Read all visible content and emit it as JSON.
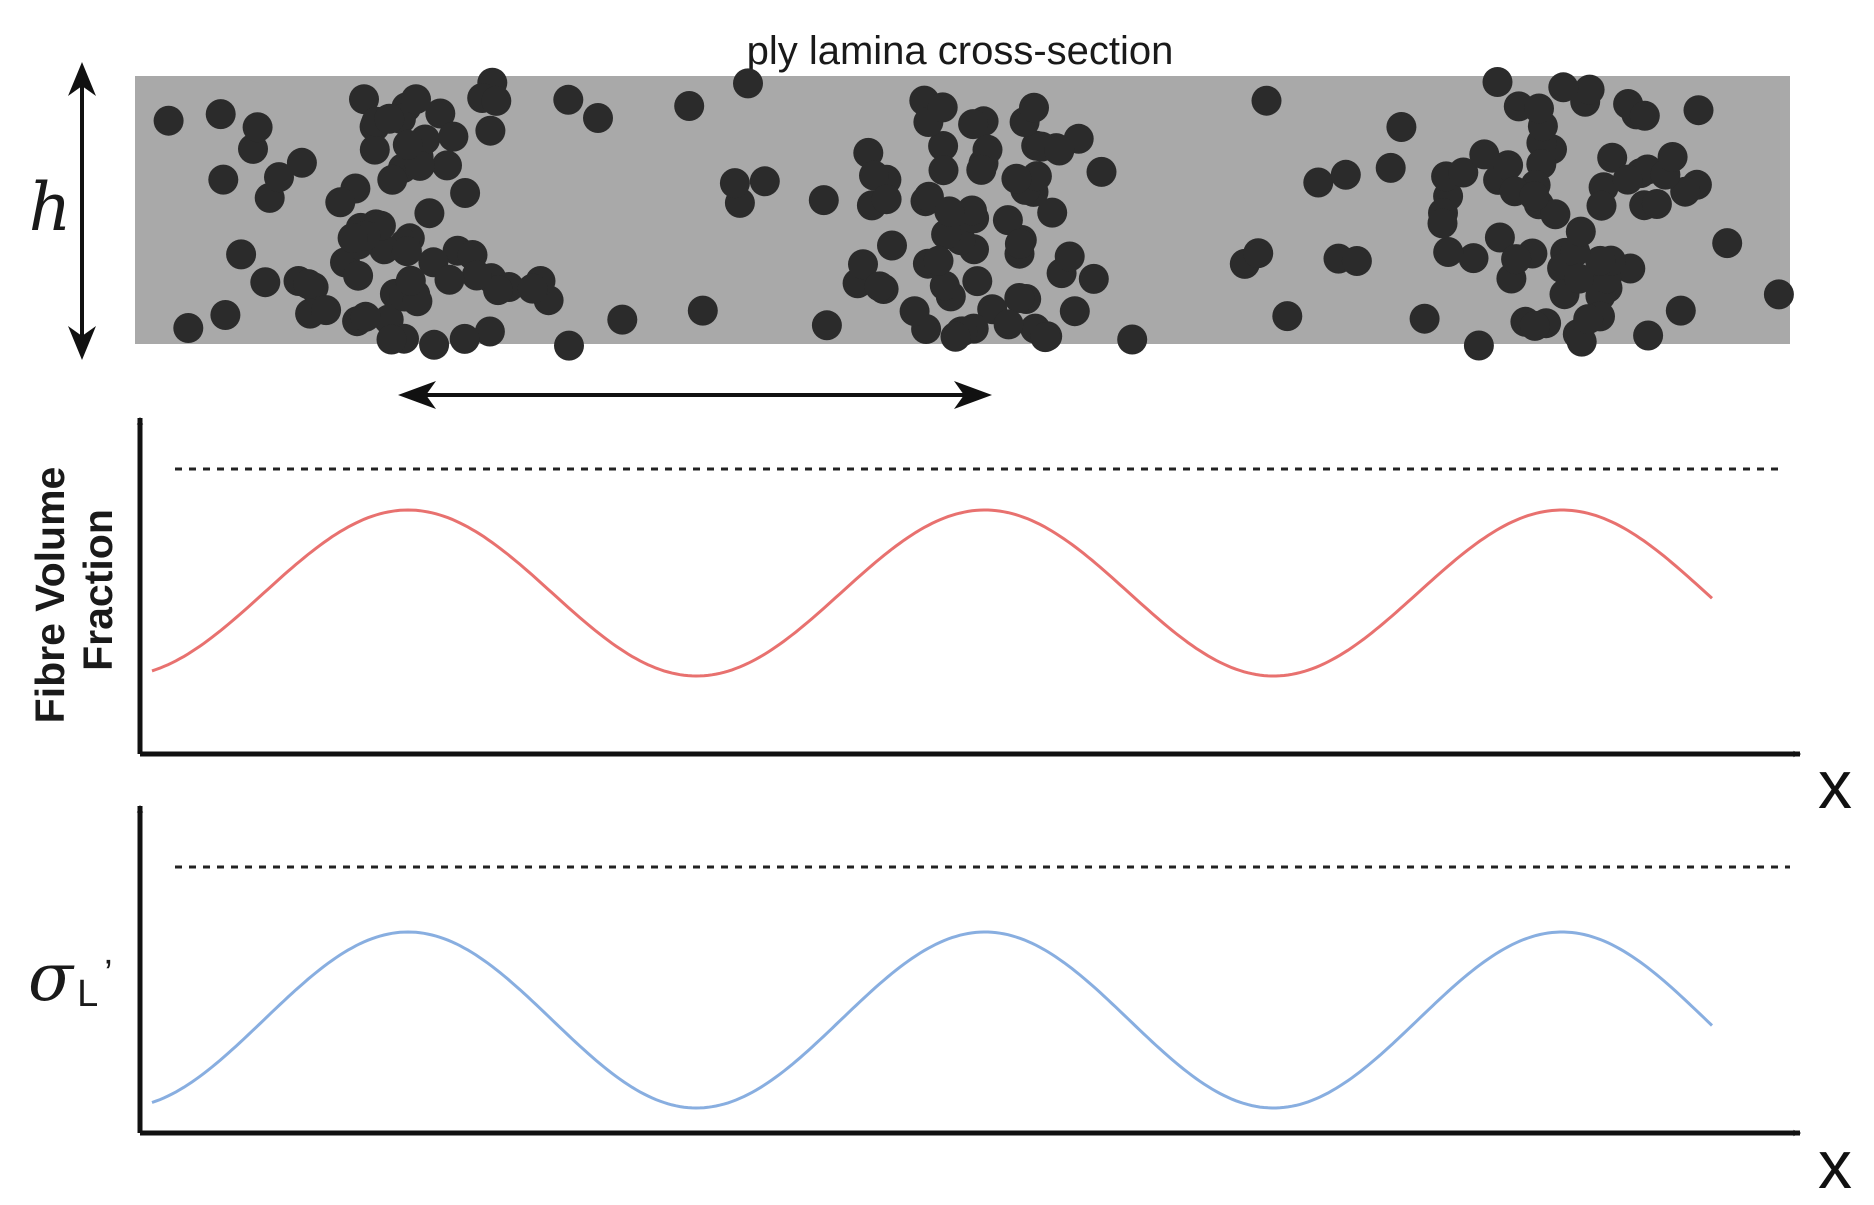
{
  "cross_section": {
    "title": "ply lamina cross-section",
    "height_label": "h",
    "panel_color": "#a9a9a9",
    "fibre_color": "#2b2b2b"
  },
  "plot_vf": {
    "ylabel_line1": "Fibre Volume",
    "ylabel_line2": "Fraction",
    "xlabel": "x",
    "curve_color": "#e8716f"
  },
  "plot_sigma": {
    "ylabel_symbol": "σ",
    "ylabel_sub": "L",
    "ylabel_prime": "’",
    "xlabel": "x",
    "curve_color": "#88aee0"
  }
}
